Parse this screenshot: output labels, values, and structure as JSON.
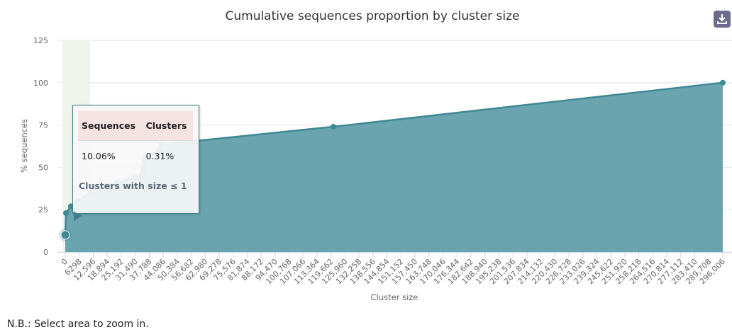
{
  "chart_data": {
    "type": "area",
    "title": "Cumulative sequences proportion by cluster size",
    "xlabel": "Cluster size",
    "ylabel": "% sequences",
    "xlim": [
      0,
      296006
    ],
    "ylim": [
      0,
      125
    ],
    "yticks": [
      0,
      25,
      50,
      75,
      100,
      125
    ],
    "xticks": [
      "0",
      "6298",
      "12,596",
      "18,894",
      "25,192",
      "31,490",
      "37,788",
      "44,086",
      "50,384",
      "56,682",
      "62,980",
      "69,278",
      "75,576",
      "81,874",
      "88,172",
      "94,470",
      "100,768",
      "107,066",
      "113,364",
      "119,662",
      "125,960",
      "132,258",
      "138,556",
      "144,854",
      "151,152",
      "157,450",
      "163,748",
      "170,046",
      "176,344",
      "182,642",
      "188,940",
      "195,238",
      "201,536",
      "207,834",
      "214,132",
      "220,430",
      "226,728",
      "233,026",
      "239,324",
      "245,622",
      "251,920",
      "258,218",
      "264,516",
      "270,814",
      "277,112",
      "283,410",
      "289,708",
      "296,006"
    ],
    "grid": true,
    "series": [
      {
        "x": [
          1,
          319,
          2555,
          5747,
          12134,
          18520,
          23309,
          31291,
          34485,
          34800,
          35123,
          35442,
          36081,
          42148,
          43106,
          120700,
          296006
        ],
        "y": [
          10.06,
          23,
          27,
          30,
          36,
          39,
          41,
          44,
          45.6,
          47,
          50,
          53.5,
          56,
          60,
          63.5,
          74,
          100
        ]
      }
    ],
    "color": "#3f8896",
    "fill_color": "#6aa4af",
    "highlight_band_color": "#eef3ec"
  },
  "tooltip": {
    "headers": [
      "Sequences",
      "Clusters"
    ],
    "values": [
      "10.06%",
      "0.31%"
    ],
    "footer": "Clusters with size ≤ 1"
  },
  "download_icon": "download-icon",
  "note": "N.B.: Select area to zoom in."
}
